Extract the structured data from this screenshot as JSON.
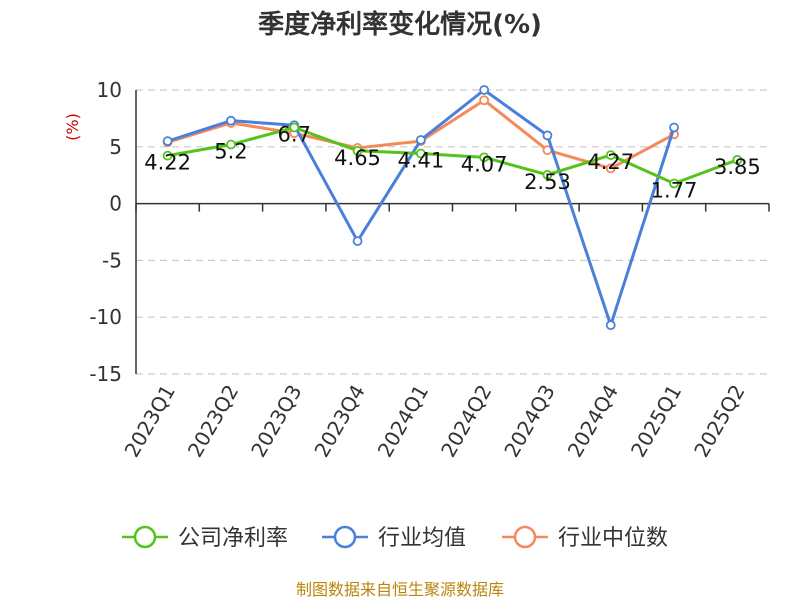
{
  "chart_data": {
    "type": "line",
    "title": "季度净利率变化情况(%)",
    "ylabel": "(%)",
    "categories": [
      "2023Q1",
      "2023Q2",
      "2023Q3",
      "2023Q4",
      "2024Q1",
      "2024Q2",
      "2024Q3",
      "2024Q4",
      "2025Q1",
      "2025Q2"
    ],
    "ylim": [
      -15,
      10
    ],
    "yticks": [
      10,
      5,
      0,
      -5,
      -10,
      -15
    ],
    "grid": true,
    "legend_position": "bottom",
    "series": [
      {
        "name": "公司净利率",
        "color": "#52c41a",
        "values": [
          4.22,
          5.2,
          6.7,
          4.65,
          4.41,
          4.07,
          2.53,
          4.27,
          1.77,
          3.85
        ],
        "labels": [
          "4.22",
          "5.2",
          "6.7",
          "4.65",
          "4.41",
          "4.07",
          "2.53",
          "4.27",
          "1.77",
          "3.85"
        ]
      },
      {
        "name": "行业均值",
        "color": "#4a7fdc",
        "values": [
          5.5,
          7.3,
          6.9,
          -3.3,
          5.6,
          10.0,
          6.0,
          -10.7,
          6.7,
          null
        ]
      },
      {
        "name": "行业中位数",
        "color": "#f5895a",
        "values": [
          5.4,
          7.1,
          6.2,
          4.9,
          5.5,
          9.1,
          4.7,
          3.1,
          6.1,
          null
        ]
      }
    ],
    "source": "制图数据来自恒生聚源数据库"
  }
}
